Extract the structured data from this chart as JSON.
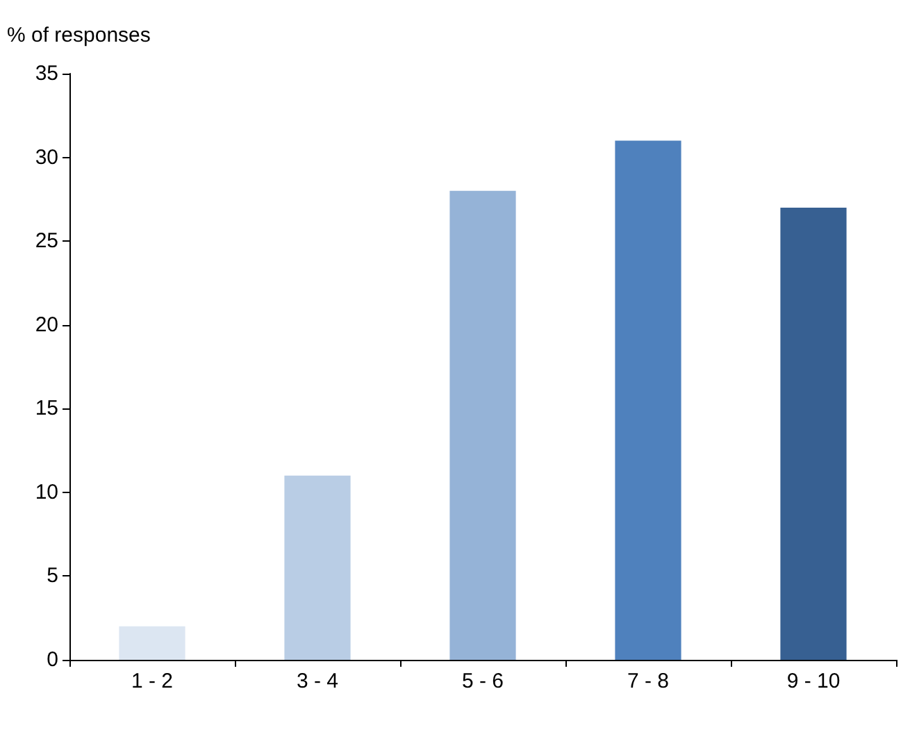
{
  "chart_data": {
    "type": "bar",
    "ylabel": "% of responses",
    "categories": [
      "1 - 2",
      "3 - 4",
      "5 - 6",
      "7 - 8",
      "9 - 10"
    ],
    "values": [
      2,
      11,
      28,
      31,
      27
    ],
    "colors": [
      "#dce6f2",
      "#b9cde5",
      "#95b3d7",
      "#4f81bd",
      "#376092"
    ],
    "ylim": [
      0,
      35
    ],
    "yticks": [
      0,
      5,
      10,
      15,
      20,
      25,
      30,
      35
    ],
    "grid": false
  }
}
